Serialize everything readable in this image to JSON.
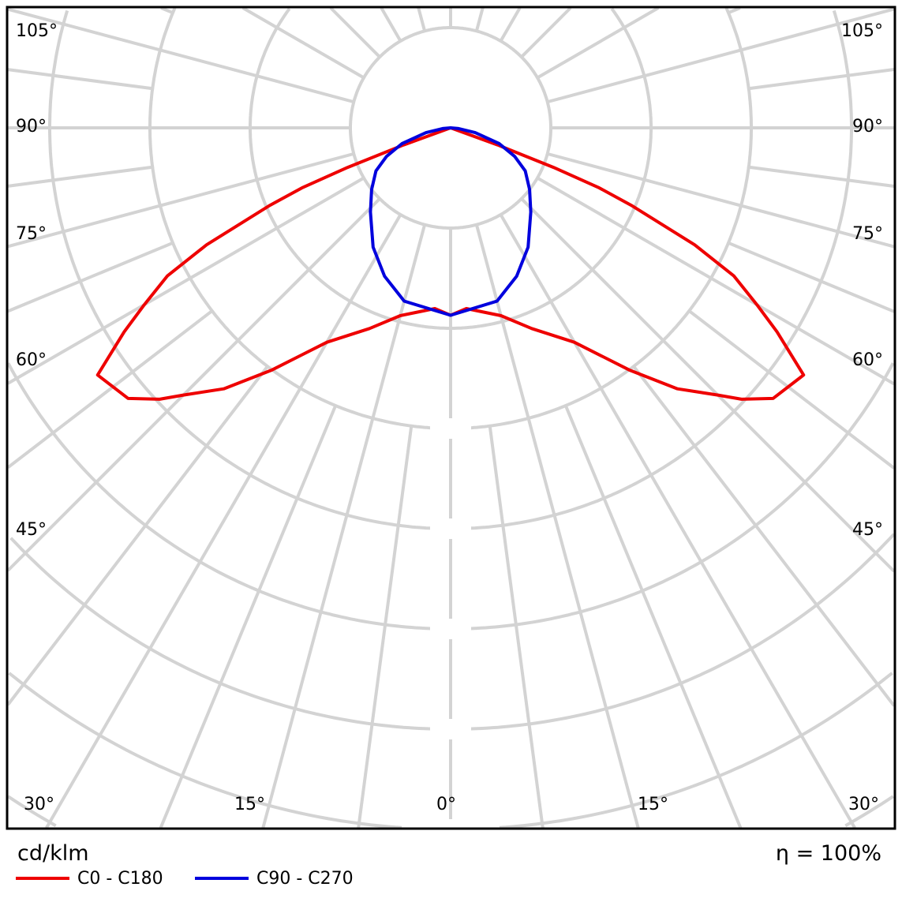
{
  "chart_data": {
    "type": "polar",
    "unit_label": "cd/klm",
    "efficiency_label": "η = 100%",
    "angle_labels": {
      "left": [
        "105°",
        "90°",
        "75°",
        "60°",
        "45°"
      ],
      "right": [
        "105°",
        "90°",
        "75°",
        "60°",
        "45°"
      ],
      "bottom": [
        "30°",
        "15°",
        "0°",
        "15°",
        "30°"
      ]
    },
    "angle_grid_step_deg": 15,
    "grid": true,
    "legend_placement": "bottom-left",
    "series": [
      {
        "name": "C0 - C180",
        "color": "#ee0000",
        "symmetric": true,
        "gamma": [
          0,
          5,
          15,
          22,
          30,
          36.5,
          41,
          45,
          47,
          50,
          55,
          58,
          60,
          62.4,
          64.4,
          66.8,
          68,
          69,
          70,
          71,
          90
        ],
        "intensity": [
          187,
          181,
          194,
          216,
          247,
          301,
          345,
          377,
          397,
          420,
          430,
          384,
          353,
          319,
          270,
          196,
          160,
          110,
          50,
          0,
          0
        ]
      },
      {
        "name": "C90 - C270",
        "color": "#0000dd",
        "symmetric": true,
        "gamma": [
          0,
          15,
          24,
          33,
          43.6,
          52,
          60,
          66,
          72,
          79,
          85,
          90
        ],
        "intensity": [
          187,
          179,
          162,
          142,
          116,
          100,
          86,
          70,
          51,
          25,
          8,
          0
        ]
      }
    ]
  }
}
